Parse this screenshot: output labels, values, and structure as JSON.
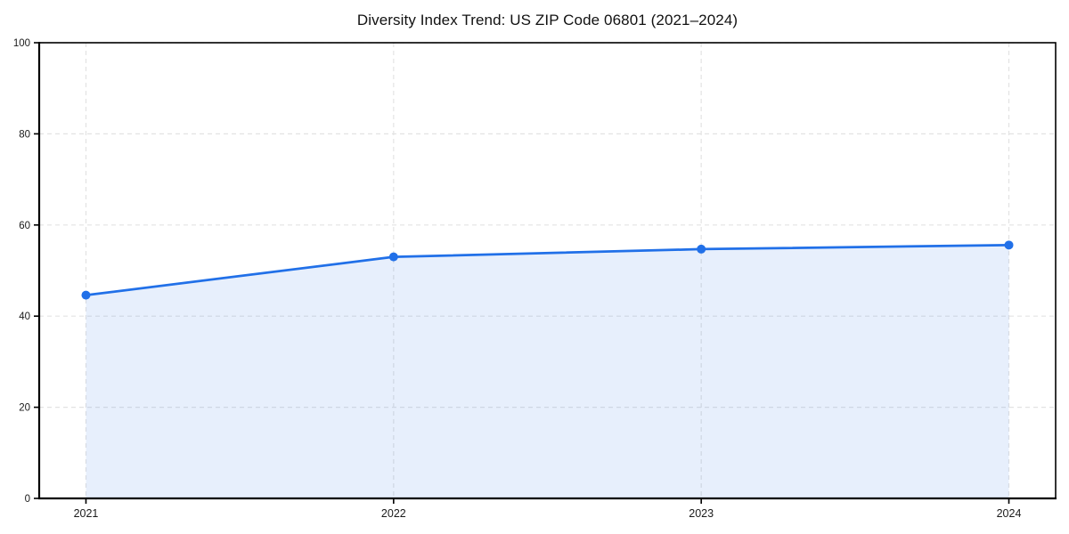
{
  "page": {
    "background_color": "#ffffff"
  },
  "chart_data": {
    "type": "area",
    "title": "Diversity Index Trend: US ZIP Code 06801 (2021–2024)",
    "categories": [
      "2021",
      "2022",
      "2023",
      "2024"
    ],
    "series": [
      {
        "name": "Diversity Index",
        "values": [
          44.6,
          53.0,
          54.7,
          55.6
        ]
      }
    ],
    "xlabel": "",
    "ylabel": "",
    "ylim": [
      0,
      100
    ],
    "yticks": [
      0,
      20,
      40,
      60,
      80,
      100
    ],
    "grid": true,
    "grid_style": "dashed",
    "legend": "none",
    "line_color": "#2170e8",
    "fill_opacity": 0.11,
    "marker": "circle",
    "marker_radius": 5,
    "line_width": 2.75,
    "grid_color": "#e3e3e3",
    "axis_color": "#000000",
    "tick_label_color": "#1a1a1a",
    "title_color": "#111111"
  }
}
